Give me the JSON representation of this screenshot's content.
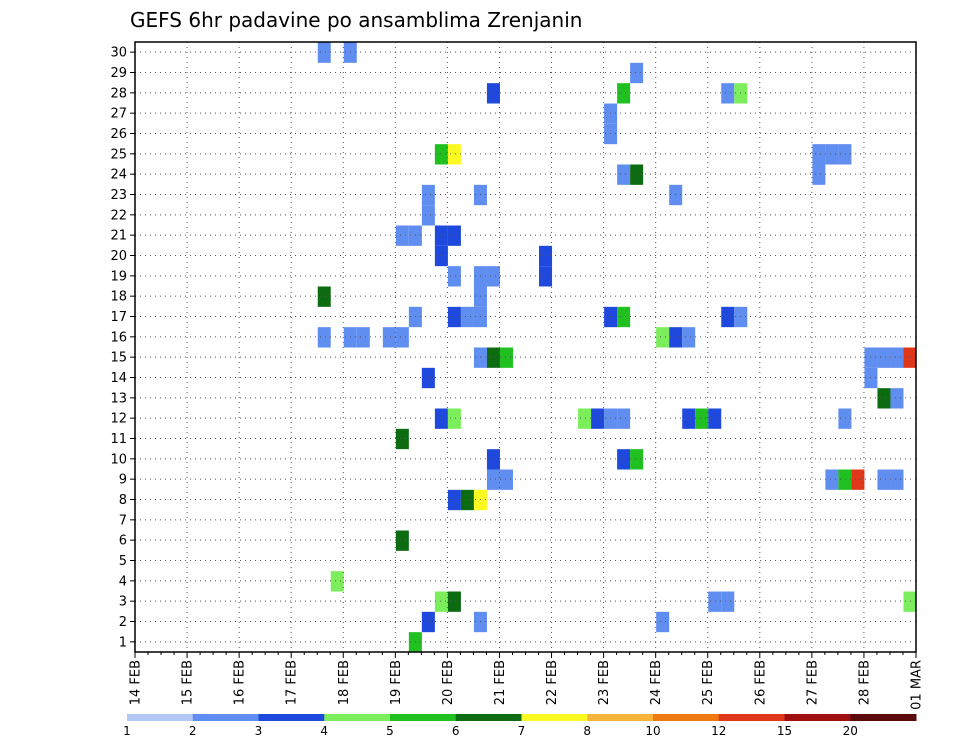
{
  "chart_data": {
    "type": "heatmap",
    "title": "GEFS 6hr padavine po ansamblima Zrenjanin",
    "xlabel": "",
    "ylabel": "",
    "x_tick_labels": [
      "14 FEB",
      "15 FEB",
      "16 FEB",
      "17 FEB",
      "18 FEB",
      "19 FEB",
      "20 FEB",
      "21 FEB",
      "22 FEB",
      "23 FEB",
      "24 FEB",
      "25 FEB",
      "26 FEB",
      "27 FEB",
      "28 FEB",
      "01 MAR"
    ],
    "y_tick_labels": [
      "1",
      "2",
      "3",
      "4",
      "5",
      "6",
      "7",
      "8",
      "9",
      "10",
      "11",
      "12",
      "13",
      "14",
      "15",
      "16",
      "17",
      "18",
      "19",
      "20",
      "21",
      "22",
      "23",
      "24",
      "25",
      "26",
      "27",
      "28",
      "29",
      "30"
    ],
    "xlim": [
      0,
      60
    ],
    "ylim": [
      0.5,
      30.5
    ],
    "grid": true,
    "legend_position": "bottom",
    "colorbar": {
      "labels": [
        "1",
        "2",
        "3",
        "4",
        "5",
        "6",
        "7",
        "8",
        "10",
        "12",
        "15",
        "20"
      ],
      "colors": [
        "#b3c8f5",
        "#5f8ef0",
        "#1e49dc",
        "#7cee5c",
        "#1fc01f",
        "#0d6b12",
        "#fafa22",
        "#f6b43a",
        "#f07a12",
        "#e0361a",
        "#a01010",
        "#5a0a0a"
      ]
    },
    "x_units": "6-hour steps from 14 FEB 00Z",
    "y_units": "ensemble member",
    "cells": [
      {
        "x": 14,
        "y": 30,
        "c": 1
      },
      {
        "x": 16,
        "y": 30,
        "c": 1
      },
      {
        "x": 38,
        "y": 29,
        "c": 1
      },
      {
        "x": 27,
        "y": 28,
        "c": 2
      },
      {
        "x": 37,
        "y": 28,
        "c": 4
      },
      {
        "x": 45,
        "y": 28,
        "c": 1
      },
      {
        "x": 46,
        "y": 28,
        "c": 3
      },
      {
        "x": 36,
        "y": 27,
        "c": 1
      },
      {
        "x": 36,
        "y": 26,
        "c": 1
      },
      {
        "x": 23,
        "y": 25,
        "c": 4
      },
      {
        "x": 24,
        "y": 25,
        "c": 6
      },
      {
        "x": 52,
        "y": 25,
        "c": 1
      },
      {
        "x": 53,
        "y": 25,
        "c": 1
      },
      {
        "x": 54,
        "y": 25,
        "c": 1
      },
      {
        "x": 37,
        "y": 24,
        "c": 1
      },
      {
        "x": 38,
        "y": 24,
        "c": 5
      },
      {
        "x": 52,
        "y": 24,
        "c": 1
      },
      {
        "x": 22,
        "y": 23,
        "c": 1
      },
      {
        "x": 26,
        "y": 23,
        "c": 1
      },
      {
        "x": 41,
        "y": 23,
        "c": 1
      },
      {
        "x": 22,
        "y": 22,
        "c": 1
      },
      {
        "x": 20,
        "y": 21,
        "c": 1
      },
      {
        "x": 21,
        "y": 21,
        "c": 1
      },
      {
        "x": 23,
        "y": 21,
        "c": 2
      },
      {
        "x": 24,
        "y": 21,
        "c": 2
      },
      {
        "x": 23,
        "y": 20,
        "c": 2
      },
      {
        "x": 31,
        "y": 20,
        "c": 2
      },
      {
        "x": 31,
        "y": 19,
        "c": 2
      },
      {
        "x": 24,
        "y": 19,
        "c": 1
      },
      {
        "x": 26,
        "y": 19,
        "c": 1
      },
      {
        "x": 27,
        "y": 19,
        "c": 1
      },
      {
        "x": 14,
        "y": 18,
        "c": 5
      },
      {
        "x": 26,
        "y": 18,
        "c": 1
      },
      {
        "x": 21,
        "y": 17,
        "c": 1
      },
      {
        "x": 24,
        "y": 17,
        "c": 2
      },
      {
        "x": 25,
        "y": 17,
        "c": 1
      },
      {
        "x": 26,
        "y": 17,
        "c": 1
      },
      {
        "x": 36,
        "y": 17,
        "c": 2
      },
      {
        "x": 37,
        "y": 17,
        "c": 4
      },
      {
        "x": 45,
        "y": 17,
        "c": 2
      },
      {
        "x": 46,
        "y": 17,
        "c": 1
      },
      {
        "x": 14,
        "y": 16,
        "c": 1
      },
      {
        "x": 16,
        "y": 16,
        "c": 1
      },
      {
        "x": 17,
        "y": 16,
        "c": 1
      },
      {
        "x": 19,
        "y": 16,
        "c": 1
      },
      {
        "x": 20,
        "y": 16,
        "c": 1
      },
      {
        "x": 40,
        "y": 16,
        "c": 3
      },
      {
        "x": 41,
        "y": 16,
        "c": 2
      },
      {
        "x": 42,
        "y": 16,
        "c": 1
      },
      {
        "x": 26,
        "y": 15,
        "c": 1
      },
      {
        "x": 27,
        "y": 15,
        "c": 5
      },
      {
        "x": 28,
        "y": 15,
        "c": 4
      },
      {
        "x": 56,
        "y": 15,
        "c": 1
      },
      {
        "x": 57,
        "y": 15,
        "c": 1
      },
      {
        "x": 58,
        "y": 15,
        "c": 1
      },
      {
        "x": 59,
        "y": 15,
        "c": 9
      },
      {
        "x": 22,
        "y": 14,
        "c": 2
      },
      {
        "x": 56,
        "y": 14,
        "c": 1
      },
      {
        "x": 57,
        "y": 13,
        "c": 5
      },
      {
        "x": 58,
        "y": 13,
        "c": 1
      },
      {
        "x": 23,
        "y": 12,
        "c": 2
      },
      {
        "x": 24,
        "y": 12,
        "c": 3
      },
      {
        "x": 34,
        "y": 12,
        "c": 3
      },
      {
        "x": 35,
        "y": 12,
        "c": 2
      },
      {
        "x": 36,
        "y": 12,
        "c": 1
      },
      {
        "x": 37,
        "y": 12,
        "c": 1
      },
      {
        "x": 42,
        "y": 12,
        "c": 2
      },
      {
        "x": 43,
        "y": 12,
        "c": 4
      },
      {
        "x": 44,
        "y": 12,
        "c": 2
      },
      {
        "x": 54,
        "y": 12,
        "c": 1
      },
      {
        "x": 20,
        "y": 11,
        "c": 5
      },
      {
        "x": 27,
        "y": 10,
        "c": 2
      },
      {
        "x": 37,
        "y": 10,
        "c": 2
      },
      {
        "x": 38,
        "y": 10,
        "c": 4
      },
      {
        "x": 27,
        "y": 9,
        "c": 1
      },
      {
        "x": 28,
        "y": 9,
        "c": 1
      },
      {
        "x": 53,
        "y": 9,
        "c": 1
      },
      {
        "x": 54,
        "y": 9,
        "c": 4
      },
      {
        "x": 55,
        "y": 9,
        "c": 9
      },
      {
        "x": 57,
        "y": 9,
        "c": 1
      },
      {
        "x": 58,
        "y": 9,
        "c": 1
      },
      {
        "x": 24,
        "y": 8,
        "c": 2
      },
      {
        "x": 25,
        "y": 8,
        "c": 5
      },
      {
        "x": 26,
        "y": 8,
        "c": 6
      },
      {
        "x": 20,
        "y": 6,
        "c": 5
      },
      {
        "x": 15,
        "y": 4,
        "c": 3
      },
      {
        "x": 23,
        "y": 3,
        "c": 3
      },
      {
        "x": 24,
        "y": 3,
        "c": 5
      },
      {
        "x": 44,
        "y": 3,
        "c": 1
      },
      {
        "x": 45,
        "y": 3,
        "c": 1
      },
      {
        "x": 59,
        "y": 3,
        "c": 3
      },
      {
        "x": 22,
        "y": 2,
        "c": 2
      },
      {
        "x": 26,
        "y": 2,
        "c": 1
      },
      {
        "x": 40,
        "y": 2,
        "c": 1
      },
      {
        "x": 21,
        "y": 1,
        "c": 4
      }
    ]
  }
}
